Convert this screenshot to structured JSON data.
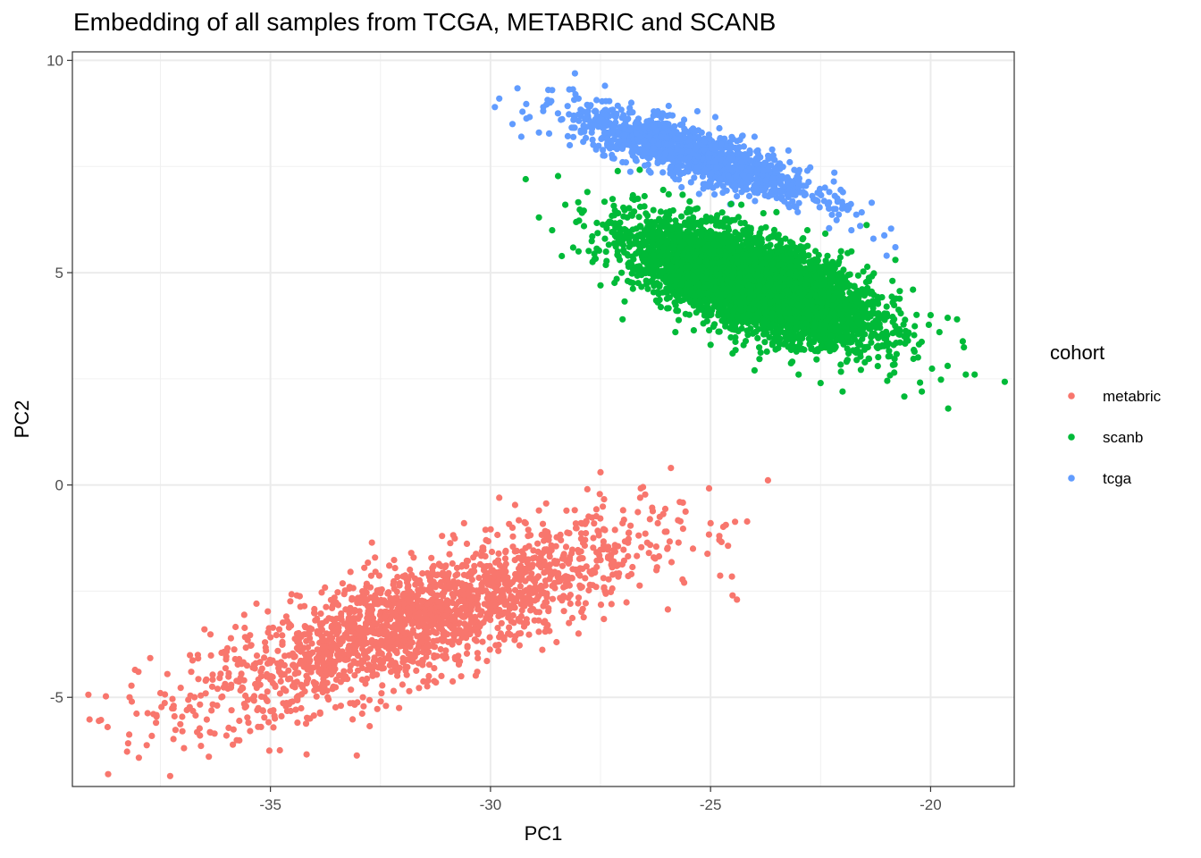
{
  "chart_data": {
    "type": "scatter",
    "title": "Embedding of all samples from TCGA, METABRIC and SCANB",
    "xlabel": "PC1",
    "ylabel": "PC2",
    "xlim": [
      -39.5,
      -18.1
    ],
    "ylim": [
      -7.1,
      10.2
    ],
    "x_ticks": [
      -35,
      -30,
      -25,
      -20
    ],
    "y_ticks": [
      -5,
      0,
      5,
      10
    ],
    "x_tick_labels": [
      "-35",
      "-30",
      "-25",
      "-20"
    ],
    "y_tick_labels": [
      "-5",
      "0",
      "5",
      "10"
    ],
    "grid": true,
    "legend": {
      "title": "cohort",
      "placement": "right"
    },
    "series": [
      {
        "name": "metabric",
        "color": "#F8766D",
        "points": [
          [
            -38.7,
            -5.7
          ],
          [
            -38.2,
            -5.0
          ],
          [
            -38.0,
            -4.4
          ],
          [
            -37.5,
            -4.9
          ],
          [
            -37.6,
            -5.6
          ],
          [
            -37.2,
            -5.2
          ],
          [
            -37.0,
            -5.8
          ],
          [
            -36.8,
            -4.4
          ],
          [
            -36.6,
            -5.9
          ],
          [
            -36.5,
            -3.4
          ],
          [
            -36.4,
            -6.4
          ],
          [
            -36.0,
            -5.9
          ],
          [
            -35.8,
            -4.1
          ],
          [
            -35.5,
            -5.6
          ],
          [
            -35.3,
            -5.3
          ],
          [
            -35.1,
            -3.9
          ],
          [
            -34.9,
            -5.5
          ],
          [
            -34.8,
            -3.4
          ],
          [
            -34.5,
            -5.1
          ],
          [
            -34.4,
            -2.6
          ],
          [
            -34.1,
            -5.5
          ],
          [
            -33.9,
            -4.4
          ],
          [
            -33.6,
            -2.9
          ],
          [
            -33.4,
            -5.2
          ],
          [
            -33.2,
            -2.4
          ],
          [
            -32.9,
            -5.0
          ],
          [
            -32.6,
            -3.7
          ],
          [
            -32.3,
            -1.9
          ],
          [
            -32.0,
            -4.7
          ],
          [
            -31.8,
            -1.6
          ],
          [
            -31.4,
            -4.5
          ],
          [
            -31.1,
            -1.2
          ],
          [
            -30.8,
            -4.1
          ],
          [
            -30.6,
            -0.9
          ],
          [
            -30.3,
            -4.4
          ],
          [
            -29.8,
            -0.3
          ],
          [
            -29.6,
            -3.5
          ],
          [
            -29.2,
            -0.9
          ],
          [
            -28.9,
            -0.6
          ],
          [
            -28.7,
            -3.3
          ],
          [
            -28.4,
            -1.3
          ],
          [
            -28.0,
            -3.5
          ],
          [
            -27.8,
            -0.1
          ],
          [
            -27.5,
            0.3
          ],
          [
            -27.2,
            -1.8
          ],
          [
            -26.8,
            -2.1
          ],
          [
            -26.6,
            -0.3
          ],
          [
            -26.2,
            -0.9
          ],
          [
            -25.9,
            0.4
          ],
          [
            -25.7,
            -0.4
          ],
          [
            -25.4,
            -1.5
          ],
          [
            -25.0,
            -0.9
          ],
          [
            -24.8,
            -1.2
          ],
          [
            -24.5,
            -2.6
          ],
          [
            -24.4,
            -2.7
          ],
          [
            -25.6,
            -2.3
          ],
          [
            -26.4,
            -1.6
          ],
          [
            -27.4,
            -2.5
          ],
          [
            -28.5,
            -3.7
          ],
          [
            -29.3,
            -2.6
          ],
          [
            -31.7,
            -3.9
          ],
          [
            -32.8,
            -2.7
          ],
          [
            -33.8,
            -3.8
          ],
          [
            -35.6,
            -4.6
          ],
          [
            -36.2,
            -4.8
          ],
          [
            -36.9,
            -5.3
          ],
          [
            -34.7,
            -4.8
          ],
          [
            -33.0,
            -3.4
          ],
          [
            -31.0,
            -2.8
          ],
          [
            -29.9,
            -2.1
          ],
          [
            -28.2,
            -1.7
          ],
          [
            -27.0,
            -0.9
          ],
          [
            -26.0,
            -1.1
          ],
          [
            -30.1,
            -1.3
          ],
          [
            -32.4,
            -3.1
          ],
          [
            -34.2,
            -4.1
          ],
          [
            -35.4,
            -4.3
          ],
          [
            -27.6,
            -2.4
          ]
        ]
      },
      {
        "name": "scanb",
        "color": "#00BA38",
        "points": [
          [
            -29.2,
            7.2
          ],
          [
            -28.9,
            6.3
          ],
          [
            -28.6,
            6.0
          ],
          [
            -28.3,
            6.6
          ],
          [
            -28.0,
            5.5
          ],
          [
            -27.8,
            6.9
          ],
          [
            -27.5,
            4.7
          ],
          [
            -27.3,
            6.2
          ],
          [
            -27.0,
            3.9
          ],
          [
            -26.8,
            5.2
          ],
          [
            -26.5,
            6.8
          ],
          [
            -26.2,
            4.3
          ],
          [
            -26.0,
            5.7
          ],
          [
            -25.8,
            3.6
          ],
          [
            -25.5,
            6.5
          ],
          [
            -25.2,
            4.9
          ],
          [
            -25.0,
            3.3
          ],
          [
            -24.8,
            6.1
          ],
          [
            -24.5,
            3.1
          ],
          [
            -24.2,
            5.4
          ],
          [
            -24.0,
            2.7
          ],
          [
            -23.8,
            6.4
          ],
          [
            -23.5,
            3.5
          ],
          [
            -23.2,
            5.0
          ],
          [
            -23.0,
            2.6
          ],
          [
            -22.8,
            6.0
          ],
          [
            -22.5,
            2.4
          ],
          [
            -22.2,
            4.4
          ],
          [
            -22.0,
            2.2
          ],
          [
            -21.8,
            5.5
          ],
          [
            -21.6,
            3.1
          ],
          [
            -21.4,
            4.8
          ],
          [
            -21.2,
            2.8
          ],
          [
            -21.0,
            4.2
          ],
          [
            -20.8,
            5.3
          ],
          [
            -20.6,
            3.5
          ],
          [
            -20.4,
            4.6
          ],
          [
            -20.2,
            2.2
          ],
          [
            -20.0,
            4.0
          ],
          [
            -19.8,
            3.6
          ],
          [
            -19.6,
            1.8
          ],
          [
            -19.4,
            3.9
          ],
          [
            -19.0,
            2.6
          ],
          [
            -19.2,
            2.6
          ],
          [
            -24.6,
            5.6
          ],
          [
            -23.6,
            5.2
          ],
          [
            -25.6,
            5.9
          ],
          [
            -22.6,
            4.9
          ],
          [
            -26.6,
            6.1
          ],
          [
            -21.6,
            4.5
          ],
          [
            -27.4,
            5.8
          ],
          [
            -24.1,
            4.5
          ],
          [
            -25.1,
            6.2
          ],
          [
            -23.1,
            4.1
          ],
          [
            -26.1,
            5.0
          ],
          [
            -22.1,
            5.2
          ],
          [
            -27.1,
            6.4
          ],
          [
            -24.3,
            6.6
          ],
          [
            -23.3,
            5.8
          ],
          [
            -25.9,
            4.6
          ]
        ]
      },
      {
        "name": "tcga",
        "color": "#619CFF",
        "points": [
          [
            -29.9,
            8.9
          ],
          [
            -29.8,
            9.1
          ],
          [
            -29.5,
            8.5
          ],
          [
            -29.3,
            8.2
          ],
          [
            -28.8,
            8.9
          ],
          [
            -28.6,
            9.3
          ],
          [
            -28.4,
            8.6
          ],
          [
            -28.2,
            8.0
          ],
          [
            -28.0,
            9.1
          ],
          [
            -27.8,
            8.7
          ],
          [
            -27.6,
            7.9
          ],
          [
            -27.4,
            9.4
          ],
          [
            -27.2,
            8.4
          ],
          [
            -27.0,
            7.6
          ],
          [
            -26.8,
            9.0
          ],
          [
            -26.6,
            8.2
          ],
          [
            -26.4,
            7.4
          ],
          [
            -26.2,
            8.8
          ],
          [
            -26.0,
            8.0
          ],
          [
            -25.8,
            7.2
          ],
          [
            -25.6,
            8.6
          ],
          [
            -25.4,
            7.8
          ],
          [
            -25.2,
            8.3
          ],
          [
            -25.0,
            7.1
          ],
          [
            -24.8,
            8.4
          ],
          [
            -24.6,
            7.5
          ],
          [
            -24.4,
            8.1
          ],
          [
            -24.2,
            7.0
          ],
          [
            -24.0,
            8.2
          ],
          [
            -23.8,
            7.4
          ],
          [
            -23.6,
            7.9
          ],
          [
            -23.4,
            6.9
          ],
          [
            -23.2,
            7.6
          ],
          [
            -23.0,
            7.1
          ],
          [
            -22.8,
            7.4
          ],
          [
            -22.6,
            6.7
          ],
          [
            -22.4,
            7.0
          ],
          [
            -22.2,
            6.5
          ],
          [
            -22.0,
            6.6
          ],
          [
            -21.8,
            6.0
          ],
          [
            -21.6,
            6.1
          ],
          [
            -21.3,
            5.8
          ],
          [
            -21.0,
            5.4
          ],
          [
            -20.8,
            5.6
          ],
          [
            -26.9,
            8.6
          ],
          [
            -25.9,
            7.7
          ],
          [
            -24.9,
            7.9
          ],
          [
            -23.9,
            7.7
          ],
          [
            -27.7,
            8.3
          ],
          [
            -28.9,
            8.3
          ],
          [
            -22.9,
            6.9
          ],
          [
            -25.3,
            8.8
          ],
          [
            -26.3,
            8.4
          ],
          [
            -24.3,
            7.6
          ]
        ]
      }
    ]
  }
}
